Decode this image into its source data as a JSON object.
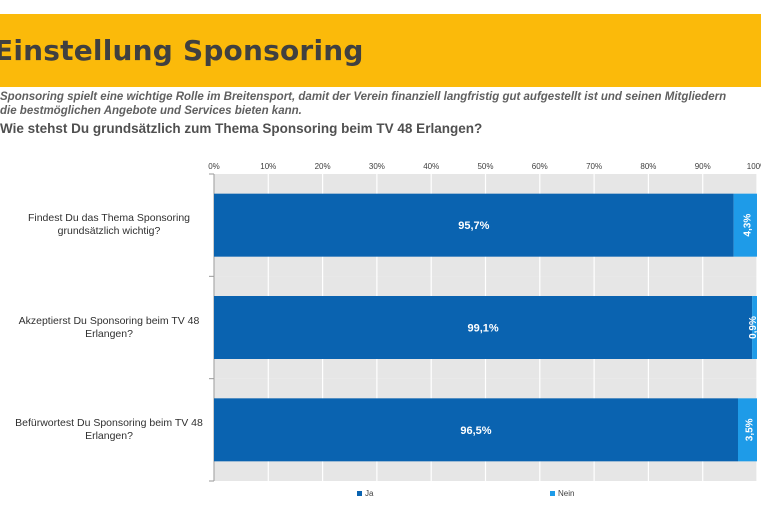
{
  "header": {
    "title": "Einstellung Sponsoring",
    "banner_color": "#fbba0a"
  },
  "intro": {
    "line1": "Sponsoring spielt eine wichtige Rolle im Breitensport, damit der Verein finanziell langfristig gut aufgestellt ist und seinen Mitgliedern",
    "line2": "die bestmöglichen Angebote und Services bieten kann."
  },
  "question": "Wie stehst Du grundsätzlich zum Thema Sponsoring beim TV 48 Erlangen?",
  "chart_data": {
    "type": "bar",
    "orientation": "horizontal",
    "stacked": true,
    "categories": [
      [
        "Findest Du das Thema Sponsoring",
        "grundsätzlich wichtig?"
      ],
      [
        "Akzeptierst Du Sponsoring beim TV 48",
        "Erlangen?"
      ],
      [
        "Befürwortest Du Sponsoring beim TV 48",
        "Erlangen?"
      ]
    ],
    "series": [
      {
        "name": "Ja",
        "color": "#0a63b0",
        "values": [
          95.7,
          99.1,
          96.5
        ],
        "labels": [
          "95,7%",
          "99,1%",
          "96,5%"
        ]
      },
      {
        "name": "Nein",
        "color": "#1e9be8",
        "values": [
          4.3,
          0.9,
          3.5
        ],
        "labels": [
          "4,3%",
          "0,9%",
          "3,5%"
        ]
      }
    ],
    "xlim": [
      0,
      100
    ],
    "xticks": [
      "0%",
      "10%",
      "20%",
      "30%",
      "40%",
      "50%",
      "60%",
      "70%",
      "80%",
      "90%",
      "100%"
    ],
    "grid": true,
    "legend_position": "bottom"
  }
}
